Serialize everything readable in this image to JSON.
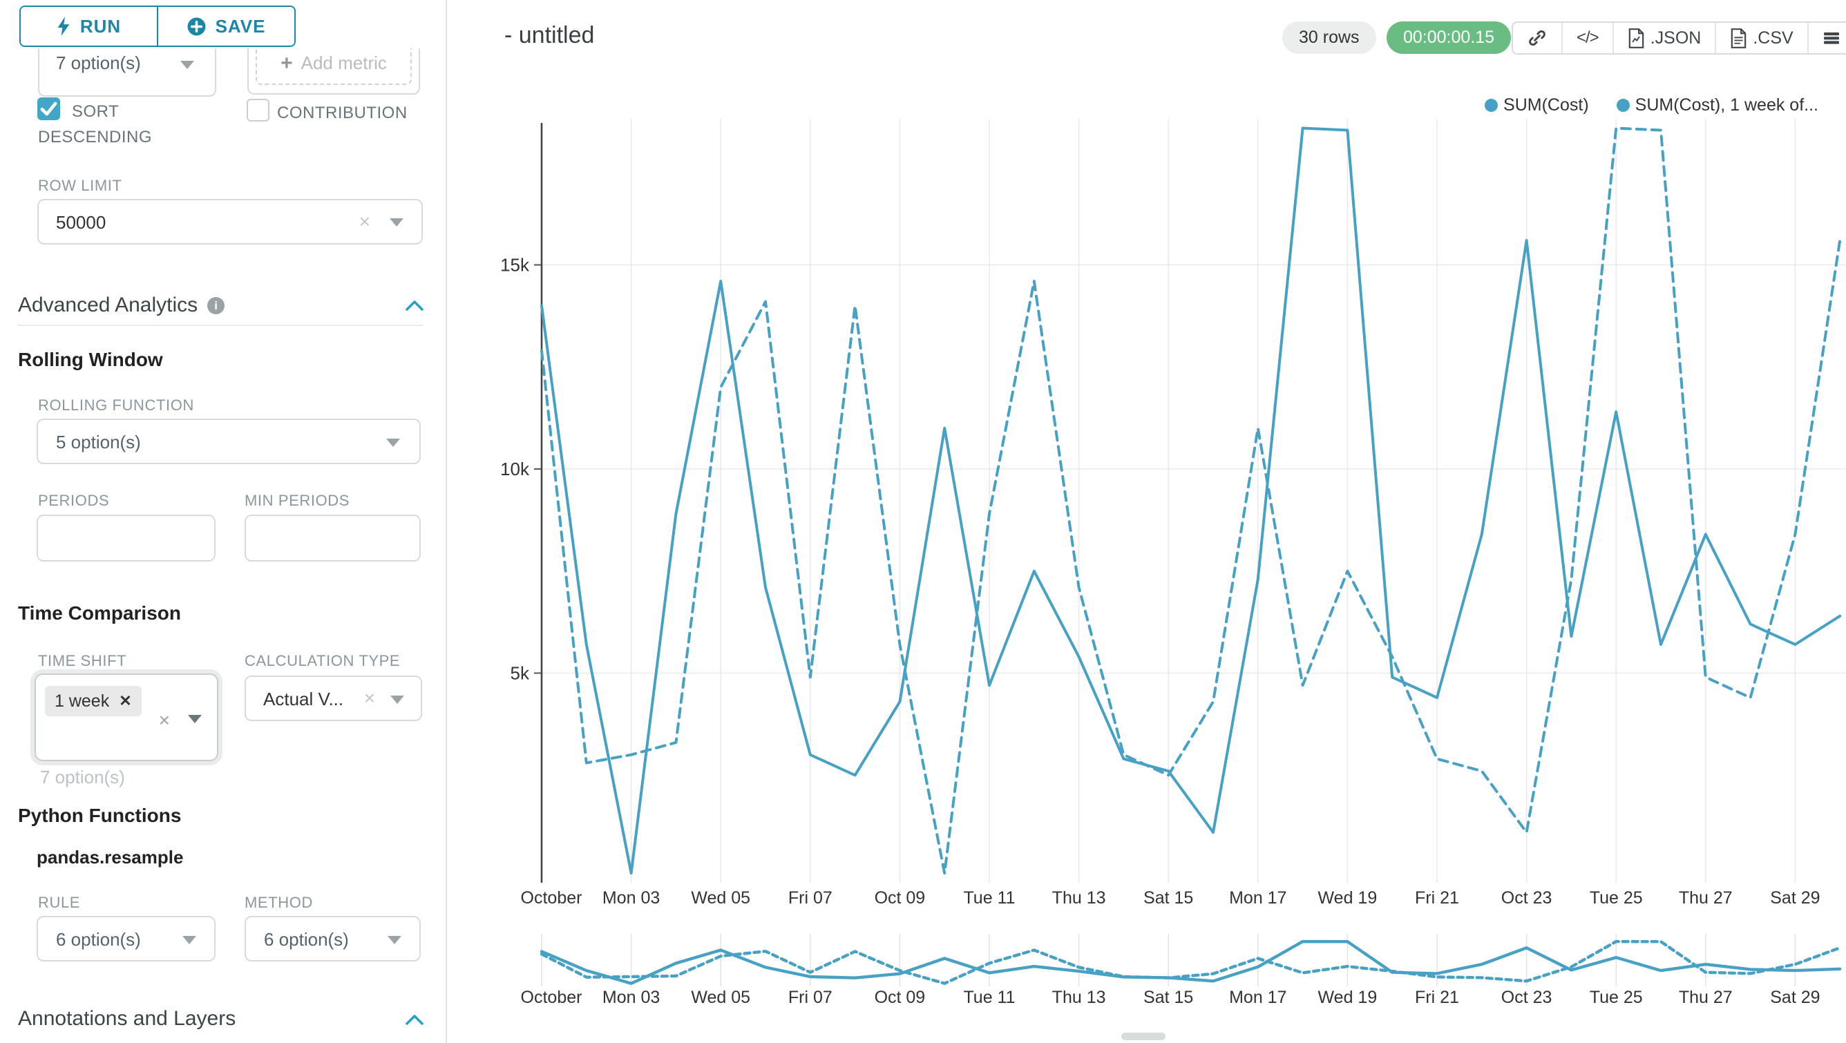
{
  "colors": {
    "accent_teal": "#1b87a5",
    "line_teal": "#47a1c5",
    "checkbox_teal": "#42a6c7",
    "timer_green": "#69bd83",
    "badge_gray": "#eceeee"
  },
  "toolbar": {
    "run_label": "RUN",
    "save_label": "SAVE"
  },
  "query_panel": {
    "series_select_value": "7 option(s)",
    "add_metric_label": "Add metric",
    "sort_label_line1": "SORT",
    "sort_label_line2": "DESCENDING",
    "contribution_label": "CONTRIBUTION",
    "row_limit_label": "ROW LIMIT",
    "row_limit_value": "50000"
  },
  "advanced_analytics": {
    "title": "Advanced Analytics",
    "rolling_window": {
      "title": "Rolling Window",
      "rolling_function_label": "ROLLING FUNCTION",
      "rolling_function_value": "5 option(s)",
      "periods_label": "PERIODS",
      "min_periods_label": "MIN PERIODS"
    },
    "time_comparison": {
      "title": "Time Comparison",
      "time_shift_label": "TIME SHIFT",
      "time_shift_tag": "1 week",
      "time_shift_helper": "7 option(s)",
      "calculation_type_label": "CALCULATION TYPE",
      "calculation_type_value": "Actual V..."
    },
    "python_functions": {
      "title": "Python Functions",
      "subtitle": "pandas.resample",
      "rule_label": "RULE",
      "rule_value": "6 option(s)",
      "method_label": "METHOD",
      "method_value": "6 option(s)"
    },
    "annotations": {
      "title": "Annotations and Layers"
    }
  },
  "chart_header": {
    "title": "- untitled",
    "rows_badge": "30 rows",
    "timer": "00:00:00.15",
    "json_label": ".JSON",
    "csv_label": ".CSV"
  },
  "chart_data": {
    "type": "line",
    "title": "- untitled",
    "categories": [
      "Oct 01",
      "Oct 02",
      "Oct 03",
      "Oct 04",
      "Oct 05",
      "Oct 06",
      "Oct 07",
      "Oct 08",
      "Oct 09",
      "Oct 10",
      "Oct 11",
      "Oct 12",
      "Oct 13",
      "Oct 14",
      "Oct 15",
      "Oct 16",
      "Oct 17",
      "Oct 18",
      "Oct 19",
      "Oct 20",
      "Oct 21",
      "Oct 22",
      "Oct 23",
      "Oct 24",
      "Oct 25",
      "Oct 26",
      "Oct 27",
      "Oct 28",
      "Oct 29",
      "Oct 30"
    ],
    "x_ticks": [
      "October",
      "Mon 03",
      "Wed 05",
      "Fri 07",
      "Oct 09",
      "Tue 11",
      "Thu 13",
      "Sat 15",
      "Mon 17",
      "Wed 19",
      "Fri 21",
      "Oct 23",
      "Tue 25",
      "Thu 27",
      "Sat 29"
    ],
    "y_ticks": [
      {
        "label": "5k",
        "value": 5000
      },
      {
        "label": "10k",
        "value": 10000
      },
      {
        "label": "15k",
        "value": 15000
      }
    ],
    "ylim": [
      0,
      18430
    ],
    "grid": true,
    "legend_position": "top-right",
    "legend": [
      "SUM(Cost)",
      "SUM(Cost), 1 week of..."
    ],
    "series": [
      {
        "name": "SUM(Cost)",
        "style": "solid",
        "values": [
          14000,
          5700,
          100,
          8900,
          14600,
          7100,
          3000,
          2500,
          4300,
          11000,
          4700,
          7500,
          5400,
          2900,
          2600,
          1100,
          7300,
          18350,
          18300,
          4900,
          4400,
          8400,
          15600,
          5900,
          11400,
          5700,
          8400,
          6200,
          5700,
          6400
        ]
      },
      {
        "name": "SUM(Cost), 1 week offset",
        "style": "dashed",
        "values": [
          12900,
          2800,
          3000,
          3300,
          12000,
          14100,
          4900,
          14000,
          5700,
          100,
          8900,
          14600,
          7100,
          3000,
          2500,
          4300,
          11000,
          4700,
          7500,
          5400,
          2900,
          2600,
          1100,
          7300,
          18350,
          18300,
          4900,
          4400,
          8400,
          15600
        ]
      }
    ]
  }
}
